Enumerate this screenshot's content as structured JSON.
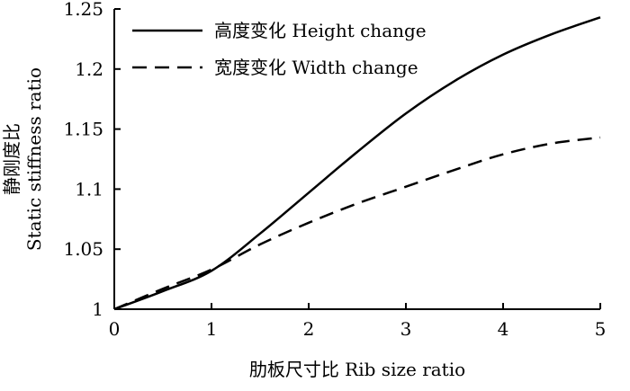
{
  "chart_data": {
    "type": "line",
    "title": "",
    "xlabel": "肋板尺寸比 Rib size ratio",
    "ylabel_line1": "静刚度比",
    "ylabel_line2": "Static stiffness ratio",
    "xlim": [
      0,
      5
    ],
    "ylim": [
      1,
      1.25
    ],
    "x_ticks": [
      0,
      1,
      2,
      3,
      4,
      5
    ],
    "x_tick_labels": [
      "0",
      "1",
      "2",
      "3",
      "4",
      "5"
    ],
    "y_ticks": [
      1,
      1.05,
      1.1,
      1.15,
      1.2,
      1.25
    ],
    "y_tick_labels": [
      "1",
      "1.05",
      "1.1",
      "1.15",
      "1.2",
      "1.25"
    ],
    "grid": false,
    "legend_position": "top-left",
    "x": [
      0,
      0.5,
      1,
      1.5,
      2,
      2.5,
      3,
      3.5,
      4,
      4.5,
      5
    ],
    "series": [
      {
        "name": "高度变化 Height change",
        "style": "solid",
        "color": "#000000",
        "values": [
          1.0,
          1.015,
          1.032,
          1.063,
          1.097,
          1.131,
          1.163,
          1.19,
          1.212,
          1.229,
          1.243
        ]
      },
      {
        "name": "宽度变化 Width change",
        "style": "dashed",
        "color": "#000000",
        "values": [
          1.0,
          1.017,
          1.033,
          1.054,
          1.072,
          1.088,
          1.102,
          1.116,
          1.129,
          1.138,
          1.143
        ]
      }
    ]
  }
}
